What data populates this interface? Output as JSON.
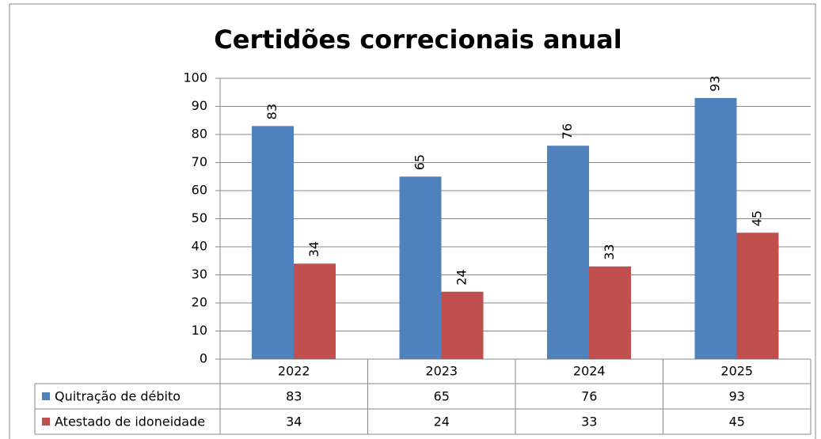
{
  "chart_data": {
    "type": "bar",
    "title": "Certidões correcionais anual",
    "categories": [
      "2022",
      "2023",
      "2024",
      "2025"
    ],
    "series": [
      {
        "name": "Quitração de débito",
        "color": "#4f81bd",
        "values": [
          83,
          65,
          76,
          93
        ]
      },
      {
        "name": "Atestado de idoneidade",
        "color": "#c0504d",
        "values": [
          34,
          24,
          33,
          45
        ]
      }
    ],
    "ylim": [
      0,
      100
    ],
    "yticks": [
      0,
      10,
      20,
      30,
      40,
      50,
      60,
      70,
      80,
      90,
      100
    ],
    "grid": true
  }
}
